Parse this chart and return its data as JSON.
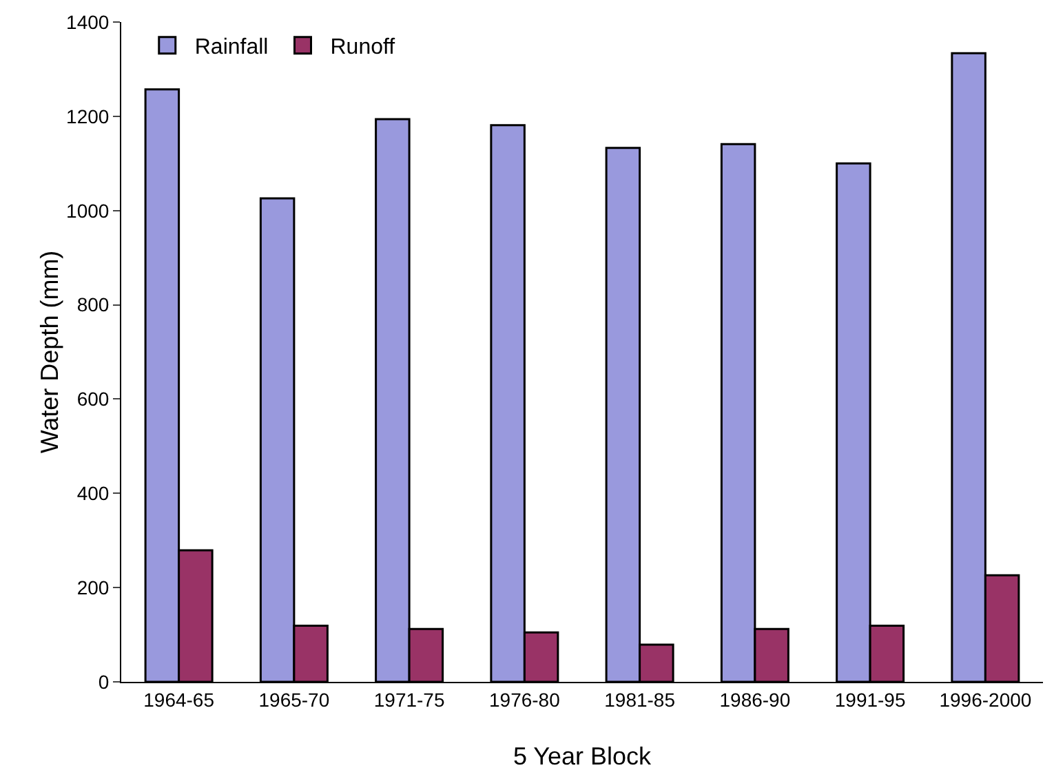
{
  "chart_data": {
    "type": "bar",
    "xlabel": "5 Year Block",
    "ylabel": "Water Depth (mm)",
    "categories": [
      "1964-65",
      "1965-70",
      "1971-75",
      "1976-80",
      "1981-85",
      "1986-90",
      "1991-95",
      "1996-2000"
    ],
    "series": [
      {
        "name": "Rainfall",
        "color": "#9999dd",
        "values": [
          1257,
          1026,
          1194,
          1181,
          1133,
          1141,
          1100,
          1334
        ]
      },
      {
        "name": "Runoff",
        "color": "#993366",
        "values": [
          279,
          119,
          112,
          105,
          79,
          112,
          119,
          226
        ]
      }
    ],
    "ylim": [
      0,
      1400
    ],
    "yticks": [
      0,
      200,
      400,
      600,
      800,
      1000,
      1200,
      1400
    ],
    "grid": false,
    "legend": "top left"
  }
}
